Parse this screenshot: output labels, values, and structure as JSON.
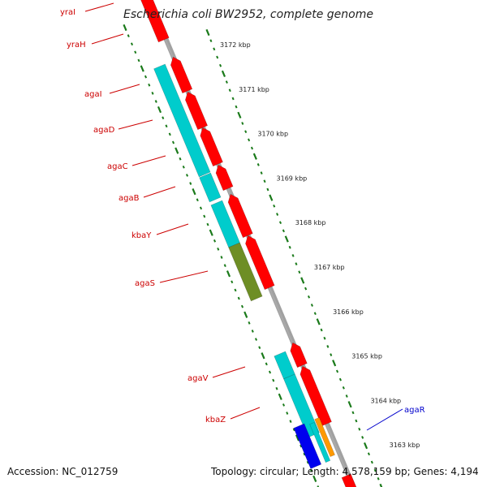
{
  "header": {
    "title": "Escherichia coli BW2952, complete genome"
  },
  "footer": {
    "accession": "Accession: NC_012759",
    "topology": "Topology: circular; Length: 4,578,159 bp; Genes: 4,194"
  },
  "colors": {
    "backbone": "#8a8a8a",
    "cds": "#ff0000",
    "gene_teal": "#00cccc",
    "gene_olive": "#6e8e25",
    "gene_blue": "#0000ee",
    "gene_orange": "#ff9900",
    "tick": "#1a7a1a",
    "label_red": "#cc0000",
    "label_blue": "#0000cc"
  },
  "ruler_labels": [
    "3172 kbp",
    "3171 kbp",
    "3170 kbp",
    "3169 kbp",
    "3168 kbp",
    "3167 kbp",
    "3166 kbp",
    "3165 kbp",
    "3164 kbp",
    "3163 kbp"
  ],
  "gene_labels": [
    {
      "name": "yraI",
      "color": "red"
    },
    {
      "name": "yraH",
      "color": "red"
    },
    {
      "name": "agaI",
      "color": "red"
    },
    {
      "name": "agaD",
      "color": "red"
    },
    {
      "name": "agaC",
      "color": "red"
    },
    {
      "name": "agaB",
      "color": "red"
    },
    {
      "name": "kbaY",
      "color": "red"
    },
    {
      "name": "agaS",
      "color": "red"
    },
    {
      "name": "agaV",
      "color": "red"
    },
    {
      "name": "kbaZ",
      "color": "red"
    },
    {
      "name": "agaR",
      "color": "blue"
    }
  ]
}
